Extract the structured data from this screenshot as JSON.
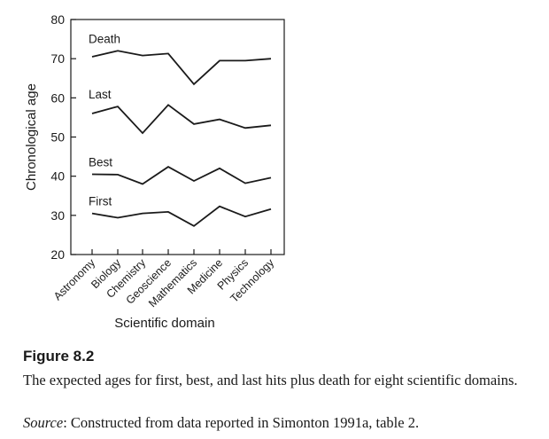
{
  "chart_data": {
    "type": "line",
    "ylabel": "Chronological age",
    "xlabel": "Scientific domain",
    "ylim": [
      20,
      80
    ],
    "yticks": [
      20,
      30,
      40,
      50,
      60,
      70,
      80
    ],
    "categories": [
      "Astronomy",
      "Biology",
      "Chemistry",
      "Geoscience",
      "Mathematics",
      "Medicine",
      "Physics",
      "Technology"
    ],
    "series": [
      {
        "name": "Death",
        "values": [
          70.5,
          72.0,
          70.8,
          71.3,
          63.5,
          69.5,
          69.5,
          70.0
        ]
      },
      {
        "name": "Last",
        "values": [
          56.0,
          57.8,
          51.0,
          58.2,
          53.3,
          54.5,
          52.3,
          53.0
        ]
      },
      {
        "name": "Best",
        "values": [
          40.5,
          40.4,
          38.0,
          42.4,
          38.8,
          42.0,
          38.2,
          39.6
        ]
      },
      {
        "name": "First",
        "values": [
          30.5,
          29.4,
          30.5,
          30.9,
          27.3,
          32.3,
          29.7,
          31.6
        ]
      }
    ],
    "line_color": "#1a1a1a"
  },
  "caption": {
    "figure_label": "Figure 8.2",
    "description": "The expected ages for first, best, and last hits plus death for eight scientific domains.",
    "source_label": "Source",
    "source_text": ": Constructed from data reported in Simonton 1991a, table 2."
  }
}
